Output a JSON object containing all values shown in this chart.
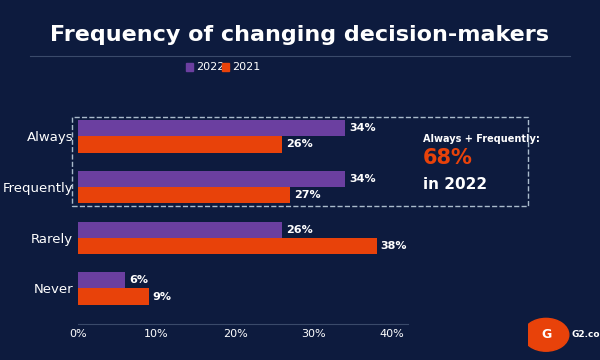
{
  "title": "Frequency of changing decision-makers",
  "background_color": "#0d1b3e",
  "categories": [
    "Always",
    "Frequently",
    "Rarely",
    "Never"
  ],
  "values_2022": [
    34,
    34,
    26,
    6
  ],
  "values_2021": [
    26,
    27,
    38,
    9
  ],
  "color_2022": "#6b3fa0",
  "color_2021": "#e8420a",
  "text_color": "#ffffff",
  "annotation_text1": "Always + Frequently:",
  "annotation_value": "68%",
  "annotation_text2": "in 2022",
  "annotation_color": "#e8420a",
  "xlim": [
    0,
    42
  ],
  "xticks": [
    0,
    10,
    20,
    30,
    40
  ],
  "xticklabels": [
    "0%",
    "10%",
    "20%",
    "30%",
    "40%"
  ],
  "legend_labels": [
    "2022",
    "2021"
  ],
  "title_fontsize": 16,
  "bar_height": 0.32,
  "label_fontsize": 8,
  "axis_label_fontsize": 8,
  "separator_color": "#3a4a6a",
  "dashed_color": "#aabbcc"
}
